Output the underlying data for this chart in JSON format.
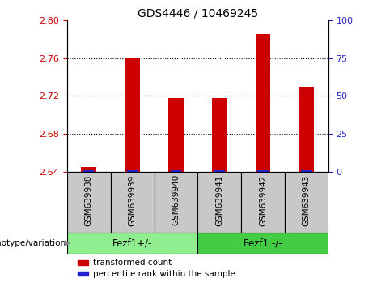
{
  "title": "GDS4446 / 10469245",
  "categories": [
    "GSM639938",
    "GSM639939",
    "GSM639940",
    "GSM639941",
    "GSM639942",
    "GSM639943"
  ],
  "red_values": [
    2.645,
    2.76,
    2.718,
    2.718,
    2.785,
    2.73
  ],
  "blue_values": [
    1.0,
    1.0,
    1.0,
    1.0,
    1.0,
    1.0
  ],
  "ylim_left": [
    2.64,
    2.8
  ],
  "yticks_left": [
    2.64,
    2.68,
    2.72,
    2.76,
    2.8
  ],
  "ylim_right": [
    0,
    100
  ],
  "yticks_right": [
    0,
    25,
    50,
    75,
    100
  ],
  "groups": [
    {
      "label": "Fezf1+/-",
      "indices": [
        0,
        1,
        2
      ]
    },
    {
      "label": "Fezf1 -/-",
      "indices": [
        3,
        4,
        5
      ]
    }
  ],
  "group_label_prefix": "genotype/variation",
  "legend_red": "transformed count",
  "legend_blue": "percentile rank within the sample",
  "bar_width": 0.35,
  "red_color": "#CC0000",
  "blue_color": "#2222CC",
  "left_tick_color": "#CC0000",
  "right_tick_color": "#2222CC",
  "gray_cell_color": "#C8C8C8",
  "group_light_green": "#90EE90",
  "group_dark_green": "#44CC44"
}
